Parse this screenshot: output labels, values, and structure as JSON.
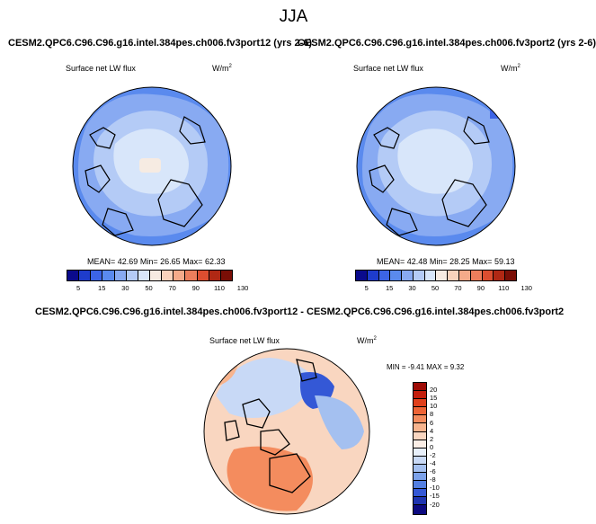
{
  "title": "JJA",
  "left_panel": {
    "case": "CESM2.QPC6.C96.C96.g16.intel.384pes.ch006.fv3port12 (yrs 2-6)",
    "variable": "Surface net LW flux",
    "units_base": "W/m",
    "units_exp": "2",
    "stats": {
      "mean_label": "MEAN=",
      "mean": "42.69",
      "min_label": "Min=",
      "min": "26.65",
      "max_label": "Max=",
      "max": "62.33"
    }
  },
  "right_panel": {
    "case": "CESM2.QPC6.C96.C96.g16.intel.384pes.ch006.fv3port2 (yrs 2-6)",
    "variable": "Surface net LW flux",
    "units_base": "W/m",
    "units_exp": "2",
    "stats": {
      "mean_label": "MEAN=",
      "mean": "42.48",
      "min_label": "Min=",
      "min": "28.25",
      "max_label": "Max=",
      "max": "59.13"
    }
  },
  "diff_panel": {
    "title": "CESM2.QPC6.C96.C96.g16.intel.384pes.ch006.fv3port12 - CESM2.QPC6.C96.C96.g16.intel.384pes.ch006.fv3port2",
    "variable": "Surface net LW flux",
    "units_base": "W/m",
    "units_exp": "2",
    "stats": {
      "min_label": "MIN =",
      "min": "-9.41",
      "max_label": "MAX =",
      "max": "9.32"
    }
  },
  "abs_colorbar": {
    "colors": [
      "#0a0a8c",
      "#1e3ccc",
      "#3c64e6",
      "#5a8aee",
      "#88aaf2",
      "#b4cbf6",
      "#d8e6fa",
      "#f6ebe2",
      "#f8d2bc",
      "#f4aa8a",
      "#ec7e5c",
      "#dc4e30",
      "#b02814",
      "#7a0e06"
    ],
    "labels": [
      "5",
      "15",
      "30",
      "50",
      "70",
      "90",
      "110",
      "130"
    ]
  },
  "diff_colorbar": {
    "colors": [
      "#9e0c06",
      "#c41e0c",
      "#e0401c",
      "#ee6436",
      "#f48c5e",
      "#f7b48e",
      "#f9d6c0",
      "#fbeee6",
      "#e8f0fb",
      "#c8d9f6",
      "#a4c0f0",
      "#7ca2ea",
      "#5480e2",
      "#3458d6",
      "#1e34b0",
      "#0c0a80"
    ],
    "labels": [
      "20",
      "15",
      "10",
      "8",
      "6",
      "4",
      "2",
      "0",
      "-2",
      "-4",
      "-6",
      "-8",
      "-10",
      "-15",
      "-20"
    ]
  }
}
